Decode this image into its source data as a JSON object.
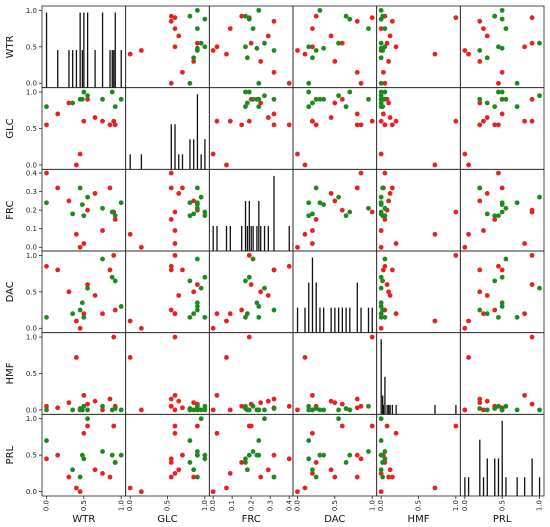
{
  "chart_data": {
    "type": "scatter-matrix",
    "variables": [
      "WTR",
      "GLC",
      "FRC",
      "DAC",
      "HMF",
      "PRL"
    ],
    "ticks": {
      "WTR": [
        0.0,
        0.5,
        1.0
      ],
      "GLC": [
        0.0,
        0.5,
        1.0
      ],
      "FRC": [
        0.0,
        0.1,
        0.2,
        0.3,
        0.4
      ],
      "DAC": [
        0.0,
        0.5,
        1.0
      ],
      "HMF": [
        0.0,
        0.5,
        1.0
      ],
      "PRL": [
        0.0,
        0.5,
        1.0
      ]
    },
    "ranges": {
      "WTR": [
        -0.06,
        1.06
      ],
      "GLC": [
        -0.06,
        1.06
      ],
      "FRC": [
        -0.02,
        0.42
      ],
      "DAC": [
        -0.06,
        1.06
      ],
      "HMF": [
        -0.06,
        1.06
      ],
      "PRL": [
        -0.06,
        1.06
      ]
    },
    "class_colors": {
      "red": "#e8211f",
      "green": "#1c8a1c"
    },
    "diagonal": "histogram",
    "grid": false,
    "points": [
      {
        "class": "red",
        "WTR": 0.0,
        "GLC": 0.55,
        "FRC": 0.4,
        "DAC": 0.85,
        "HMF": 0.05,
        "PRL": 0.45
      },
      {
        "class": "red",
        "WTR": 0.15,
        "GLC": 0.7,
        "FRC": 0.32,
        "DAC": 0.8,
        "HMF": 0.03,
        "PRL": 0.5
      },
      {
        "class": "red",
        "WTR": 0.3,
        "GLC": 0.85,
        "FRC": 0.25,
        "DAC": 0.5,
        "HMF": 0.1,
        "PRL": 0.2
      },
      {
        "class": "red",
        "WTR": 0.4,
        "GLC": 0.0,
        "FRC": 0.07,
        "DAC": 0.1,
        "HMF": 0.72,
        "PRL": 0.05
      },
      {
        "class": "red",
        "WTR": 0.45,
        "GLC": 0.15,
        "FRC": 0.0,
        "DAC": 0.0,
        "HMF": 0.0,
        "PRL": 0.0
      },
      {
        "class": "red",
        "WTR": 0.5,
        "GLC": 0.6,
        "FRC": 0.02,
        "DAC": 0.2,
        "HMF": 0.2,
        "PRL": 0.8
      },
      {
        "class": "red",
        "WTR": 0.55,
        "GLC": 0.9,
        "FRC": 0.2,
        "DAC": 0.6,
        "HMF": 0.08,
        "PRL": 0.9
      },
      {
        "class": "red",
        "WTR": 0.65,
        "GLC": 0.65,
        "FRC": 0.29,
        "DAC": 0.45,
        "HMF": 0.12,
        "PRL": 0.3
      },
      {
        "class": "red",
        "WTR": 0.75,
        "GLC": 0.6,
        "FRC": 0.09,
        "DAC": 0.2,
        "HMF": 0.0,
        "PRL": 0.25
      },
      {
        "class": "red",
        "WTR": 0.85,
        "GLC": 0.55,
        "FRC": 0.32,
        "DAC": 0.8,
        "HMF": 0.15,
        "PRL": 0.2
      },
      {
        "class": "red",
        "WTR": 0.9,
        "GLC": 0.6,
        "FRC": 0.19,
        "DAC": 1.0,
        "HMF": 1.0,
        "PRL": 0.9
      },
      {
        "class": "red",
        "WTR": 0.92,
        "GLC": 0.55,
        "FRC": 0.15,
        "DAC": 0.25,
        "HMF": 0.05,
        "PRL": 0.4
      },
      {
        "class": "green",
        "WTR": 0.0,
        "GLC": 0.8,
        "FRC": 0.24,
        "DAC": 0.15,
        "HMF": 0.0,
        "PRL": 0.7
      },
      {
        "class": "green",
        "WTR": 0.35,
        "GLC": 0.85,
        "FRC": 0.18,
        "DAC": 0.2,
        "HMF": 0.0,
        "PRL": 0.3
      },
      {
        "class": "green",
        "WTR": 0.45,
        "GLC": 0.9,
        "FRC": 0.32,
        "DAC": 0.25,
        "HMF": 0.02,
        "PRL": 0.2
      },
      {
        "class": "green",
        "WTR": 0.48,
        "GLC": 0.9,
        "FRC": 0.23,
        "DAC": 0.35,
        "HMF": 0.0,
        "PRL": 0.5
      },
      {
        "class": "green",
        "WTR": 0.5,
        "GLC": 1.0,
        "FRC": 0.17,
        "DAC": 0.15,
        "HMF": 0.05,
        "PRL": 0.45
      },
      {
        "class": "green",
        "WTR": 0.55,
        "GLC": 0.95,
        "FRC": 0.27,
        "DAC": 0.55,
        "HMF": 0.0,
        "PRL": 1.0
      },
      {
        "class": "green",
        "WTR": 0.75,
        "GLC": 0.9,
        "FRC": 0.21,
        "DAC": 0.95,
        "HMF": 0.05,
        "PRL": 0.55
      },
      {
        "class": "green",
        "WTR": 0.88,
        "GLC": 1.0,
        "FRC": 0.19,
        "DAC": 0.7,
        "HMF": 0.0,
        "PRL": 0.5
      },
      {
        "class": "green",
        "WTR": 0.92,
        "GLC": 0.8,
        "FRC": 0.17,
        "DAC": 0.65,
        "HMF": 0.02,
        "PRL": 0.4
      },
      {
        "class": "green",
        "WTR": 1.0,
        "GLC": 0.9,
        "FRC": 0.24,
        "DAC": 0.3,
        "HMF": 0.0,
        "PRL": 0.5
      }
    ]
  }
}
